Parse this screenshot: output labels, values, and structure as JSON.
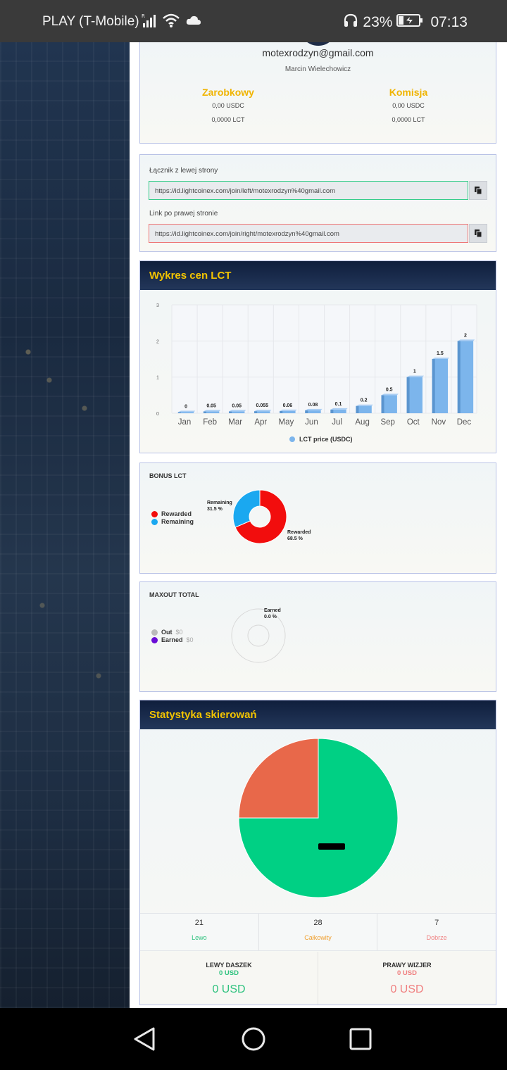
{
  "status_bar": {
    "carrier": "PLAY (T-Mobile)",
    "signal_label": "R",
    "battery": "23%",
    "time": "07:13"
  },
  "profile": {
    "email": "motexrodzyn@gmail.com",
    "name": "Marcin Wielechowicz",
    "earnings": {
      "title": "Zarobkowy",
      "usdc": "0,00 USDC",
      "lct": "0,0000 LCT"
    },
    "commission": {
      "title": "Komisja",
      "usdc": "0,00 USDC",
      "lct": "0,0000 LCT"
    }
  },
  "links": {
    "left_label": "Łącznik z lewej strony",
    "left_url": "https://id.lightcoinex.com/join/left/motexrodzyn%40gmail.com",
    "right_label": "Link po prawej stronie",
    "right_url": "https://id.lightcoinex.com/join/right/motexrodzyn%40gmail.com"
  },
  "price_chart": {
    "title": "Wykres cen LCT"
  },
  "chart_data": [
    {
      "type": "bar",
      "title": "",
      "categories": [
        "Jan",
        "Feb",
        "Mar",
        "Apr",
        "May",
        "Jun",
        "Jul",
        "Aug",
        "Sep",
        "Oct",
        "Nov",
        "Dec"
      ],
      "series": [
        {
          "name": "LCT price (USDC)",
          "values": [
            0,
            0.05,
            0.05,
            0.055,
            0.06,
            0.08,
            0.1,
            0.2,
            0.5,
            1,
            1.5,
            2
          ]
        }
      ],
      "value_labels": [
        "0",
        "0.05",
        "0.05",
        "0.055",
        "0.06",
        "0.08",
        "0.1",
        "0.2",
        "0.5",
        "1",
        "1.5",
        "2"
      ],
      "y_ticks": [
        "0",
        "1",
        "2",
        "3"
      ],
      "ylim": [
        0,
        3
      ],
      "grid": true,
      "legend": "bottom",
      "color": "#7cb5ec"
    },
    {
      "type": "pie",
      "title": "BONUS LCT",
      "style": "donut",
      "slices": [
        {
          "name": "Rewarded",
          "value": 68.5,
          "label": "68.5 %",
          "color": "#f20d0d"
        },
        {
          "name": "Remaining",
          "value": 31.5,
          "label": "31.5 %",
          "color": "#1aa8f0"
        }
      ],
      "legend": "left"
    },
    {
      "type": "pie",
      "title": "MAXOUT TOTAL",
      "style": "donut",
      "slices": [
        {
          "name": "Out",
          "value": 0,
          "amount": "$0",
          "color": "#bbbbbb"
        },
        {
          "name": "Earned",
          "value": 0,
          "amount": "$0",
          "label": "0.0 %",
          "color": "#6a0dd6"
        }
      ],
      "legend": "left"
    },
    {
      "type": "pie",
      "title": "Statystyka skierowań",
      "slices": [
        {
          "value": 75,
          "color": "#00d084"
        },
        {
          "value": 25,
          "color": "#e8684a"
        }
      ]
    }
  ],
  "bonus": {
    "title": "BONUS LCT",
    "legend": [
      "Rewarded",
      "Remaining"
    ],
    "rewarded_label": "Rewarded",
    "rewarded_pct": "68.5 %",
    "remaining_label": "Remaining",
    "remaining_pct": "31.5 %"
  },
  "maxout": {
    "title": "MAXOUT TOTAL",
    "out_label": "Out",
    "out_value": "$0",
    "earned_label": "Earned",
    "earned_value": "$0",
    "earned_chart_label": "Earned",
    "earned_pct": "0.0 %"
  },
  "referral": {
    "title": "Statystyka skierowań",
    "left_count": "21",
    "left_label": "Lewo",
    "total_count": "28",
    "total_label": "Całkowity",
    "right_count": "7",
    "right_label": "Dobrze",
    "left_money_title": "LEWY DASZEK",
    "left_money_small": "0 USD",
    "left_money_big": "0 USD",
    "right_money_title": "PRAWY WIZJER",
    "right_money_small": "0 USD",
    "right_money_big": "0 USD"
  },
  "colors": {
    "accent_gold": "#f0b400",
    "green": "#2ec27e",
    "orange": "#f0a030",
    "pink": "#f08080",
    "header_dark": "#0f1e3c"
  }
}
